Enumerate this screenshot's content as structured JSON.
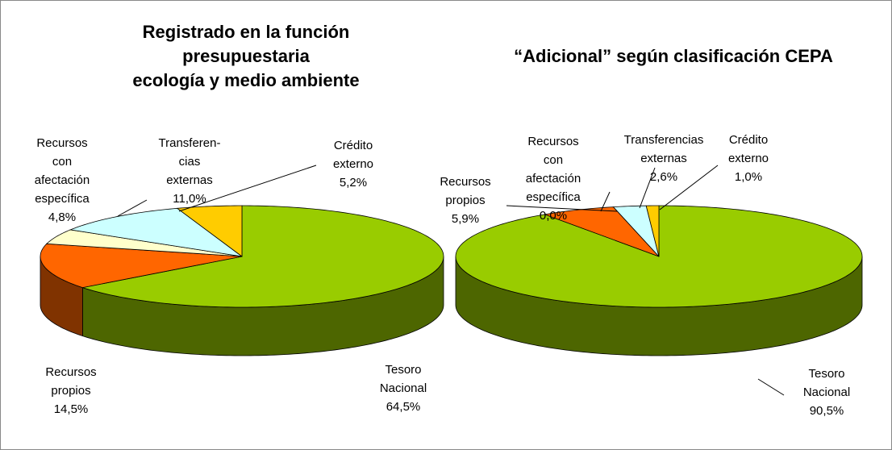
{
  "chart_data": [
    {
      "type": "pie3d",
      "title": [
        "Registrado en la función",
        "presupuestaria",
        "ecología y medio ambiente"
      ],
      "categories": [
        [
          "Tesoro",
          "Nacional"
        ],
        [
          "Recursos",
          "propios"
        ],
        [
          "Recursos",
          "con",
          "afectación",
          "específica"
        ],
        [
          "Transferen-",
          "cias",
          "externas"
        ],
        [
          "Crédito",
          "externo"
        ]
      ],
      "values": [
        64.5,
        14.5,
        4.8,
        11.0,
        5.2
      ],
      "value_labels": [
        "64,5%",
        "14,5%",
        "4,8%",
        "11,0%",
        "5,2%"
      ],
      "colors": [
        "#99cc00",
        "#ff6600",
        "#ffffcc",
        "#ccffff",
        "#ffcc00"
      ]
    },
    {
      "type": "pie3d",
      "title": [
        "“Adicional” según clasificación CEPA"
      ],
      "categories": [
        [
          "Tesoro",
          "Nacional"
        ],
        [
          "Recursos",
          "propios"
        ],
        [
          "Recursos",
          "con",
          "afectación",
          "específica"
        ],
        [
          "Transferencias",
          "externas"
        ],
        [
          "Crédito",
          "externo"
        ]
      ],
      "values": [
        90.5,
        5.9,
        0.0,
        2.6,
        1.0
      ],
      "value_labels": [
        "90,5%",
        "5,9%",
        "0,0%",
        "2,6%",
        "1,0%"
      ],
      "colors": [
        "#99cc00",
        "#ff6600",
        "#ffffcc",
        "#ccffff",
        "#ffcc00"
      ]
    }
  ]
}
